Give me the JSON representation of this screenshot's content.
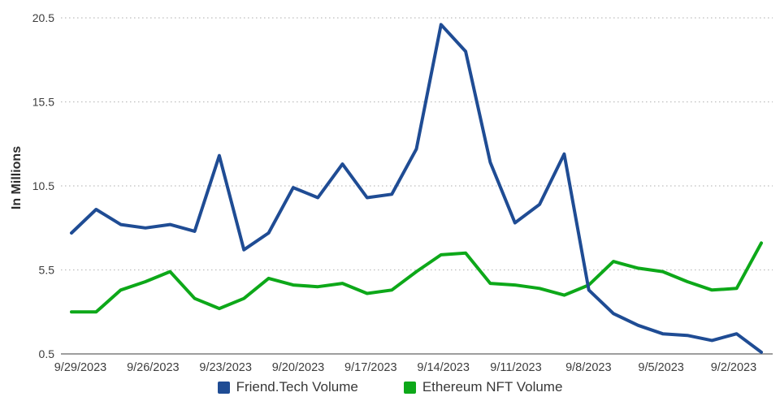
{
  "chart_data": {
    "type": "line",
    "title": "",
    "ylabel": "In Millions",
    "ylim": [
      0.5,
      20.5
    ],
    "y_ticks": [
      0.5,
      5.5,
      10.5,
      15.5,
      20.5
    ],
    "grid": "horizontal-dotted",
    "legend_position": "bottom-center",
    "x_dates": [
      "9/29/2023",
      "9/28/2023",
      "9/27/2023",
      "9/26/2023",
      "9/25/2023",
      "9/24/2023",
      "9/23/2023",
      "9/22/2023",
      "9/21/2023",
      "9/20/2023",
      "9/19/2023",
      "9/18/2023",
      "9/17/2023",
      "9/16/2023",
      "9/15/2023",
      "9/14/2023",
      "9/13/2023",
      "9/12/2023",
      "9/11/2023",
      "9/10/2023",
      "9/9/2023",
      "9/8/2023",
      "9/7/2023",
      "9/6/2023",
      "9/5/2023",
      "9/4/2023",
      "9/3/2023",
      "9/2/2023",
      "9/1/2023"
    ],
    "x_tick_labels": [
      "9/29/2023",
      "9/26/2023",
      "9/23/2023",
      "9/20/2023",
      "9/17/2023",
      "9/14/2023",
      "9/11/2023",
      "9/8/2023",
      "9/5/2023",
      "9/2/2023"
    ],
    "series": [
      {
        "name": "Friend.Tech Volume",
        "color": "#1f4c94",
        "values": [
          7.7,
          9.1,
          8.2,
          8.0,
          8.2,
          7.8,
          12.3,
          6.7,
          7.7,
          10.4,
          9.8,
          11.8,
          9.8,
          10.0,
          12.7,
          20.1,
          18.5,
          11.9,
          8.3,
          9.4,
          12.4,
          4.3,
          2.9,
          2.2,
          1.7,
          1.6,
          1.3,
          1.7,
          0.6
        ]
      },
      {
        "name": "Ethereum NFT Volume",
        "color": "#0da819",
        "values": [
          3.0,
          3.0,
          4.3,
          4.8,
          5.4,
          3.8,
          3.2,
          3.8,
          5.0,
          4.6,
          4.5,
          4.7,
          4.1,
          4.3,
          5.4,
          6.4,
          6.5,
          4.7,
          4.6,
          4.4,
          4.0,
          4.6,
          6.0,
          5.6,
          5.4,
          4.8,
          4.3,
          4.4,
          7.1
        ]
      }
    ],
    "style": {
      "grid_color": "#bdbdbd",
      "axis_color": "#9e9e9e",
      "tick_text_color": "#3d3d3d",
      "legend_text_color": "#383838",
      "line_width": 4
    }
  }
}
